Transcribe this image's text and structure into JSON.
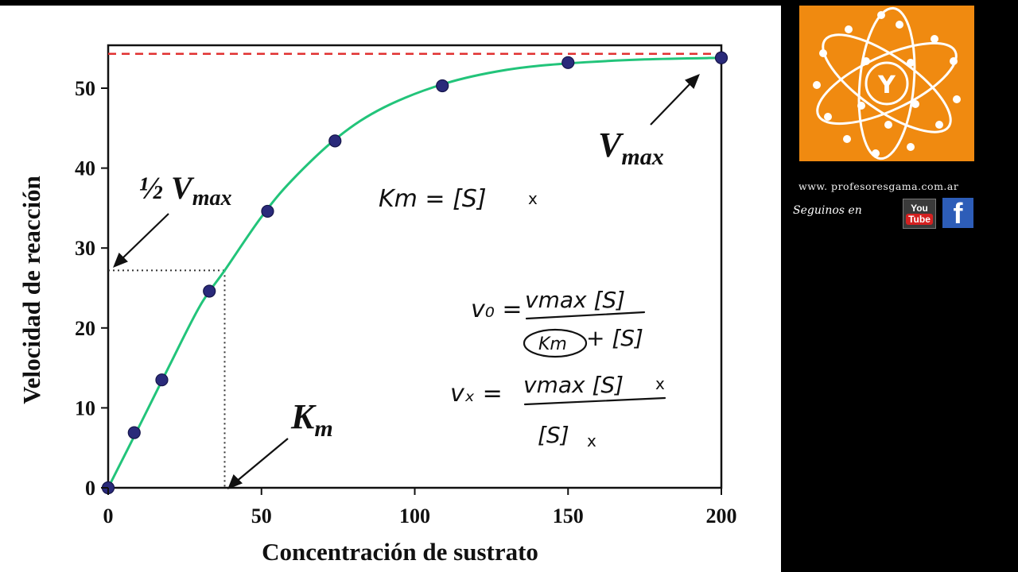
{
  "chart_data": {
    "type": "scatter",
    "xlabel": "Concentración de sustrato",
    "ylabel": "Velocidad de reacción",
    "xlim": [
      0,
      200
    ],
    "ylim": [
      0,
      55
    ],
    "xticks": [
      "0",
      "50",
      "100",
      "150",
      "200"
    ],
    "yticks": [
      "0",
      "10",
      "20",
      "30",
      "40",
      "50"
    ],
    "grid": false,
    "series": [
      {
        "x": [
          0,
          8.5,
          17.5,
          33,
          52,
          74,
          109,
          150,
          200
        ],
        "y": [
          0,
          6.9,
          13.5,
          24.6,
          34.6,
          43.4,
          50.3,
          53.2,
          53.8
        ]
      }
    ],
    "curve": {
      "x": [
        0,
        10,
        20,
        30,
        38,
        50,
        60,
        75,
        90,
        110,
        130,
        150,
        175,
        200
      ],
      "y": [
        0,
        7.6,
        15.3,
        22.8,
        27.2,
        33.9,
        38.5,
        43.9,
        47.6,
        50.6,
        52.3,
        53.1,
        53.6,
        53.8
      ]
    },
    "vmax_line": 54.3,
    "half_vmax": 27.2,
    "km_x": 38,
    "annotations": {
      "half_vmax_label": "½ V",
      "vmax_label": "V",
      "max_subscript": "max",
      "km_label": "K",
      "km_subscript": "m"
    },
    "handwritten": {
      "km_equals": "Km = [S]",
      "v0_lhs": "v₀ =",
      "v0_num": "vmax [S]",
      "v0_den_km": "Km",
      "v0_den_rest": "+ [S]",
      "vx_lhs": "vₓ =",
      "vx_num": "vmax [S]",
      "vx_den": "[S]",
      "sub_x": "x"
    },
    "colors": {
      "curve": "#22c47a",
      "points": "#2a2a7a",
      "vmax_line": "#e03030",
      "guide": "#333333"
    }
  },
  "sidebar": {
    "website": "www. profesoresgama.com.ar",
    "follow_label": "Seguinos en",
    "youtube_you": "You",
    "youtube_tube": "Tube",
    "facebook_glyph": "f",
    "logo_letter": "Y",
    "logo_color": "#f08a10"
  }
}
